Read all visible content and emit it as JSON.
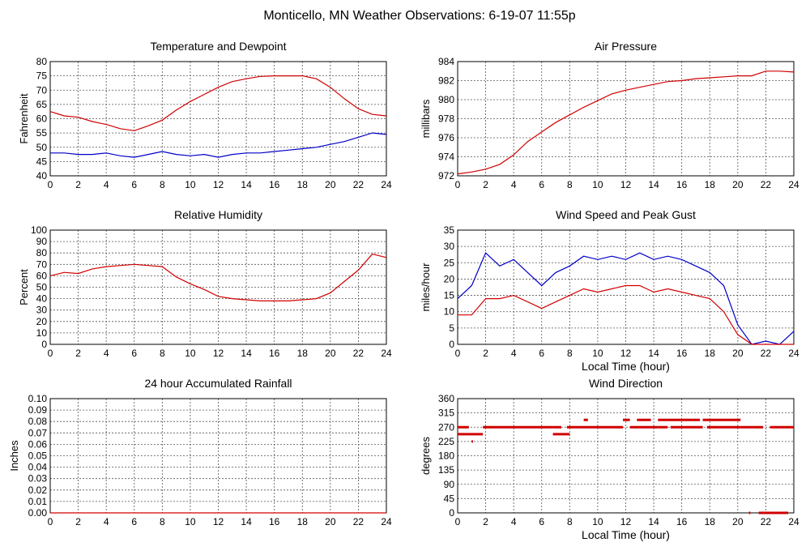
{
  "page_title": "Monticello, MN Weather Observations: 6-19-07 11:55p",
  "colors": {
    "series1": "#d00000",
    "series2": "#0000c8",
    "grid": "#555555"
  },
  "chart_data": [
    {
      "type": "line",
      "title": "Temperature and Dewpoint",
      "xlabel": "",
      "ylabel": "Fahrenheit",
      "xlim": [
        0,
        24
      ],
      "ylim": [
        40,
        80
      ],
      "xticks": [
        0,
        2,
        4,
        6,
        8,
        10,
        12,
        14,
        16,
        18,
        20,
        22,
        24
      ],
      "yticks": [
        40,
        45,
        50,
        55,
        60,
        65,
        70,
        75,
        80
      ],
      "grid": true,
      "series": [
        {
          "color": "#d00000",
          "x": [
            0,
            1,
            2,
            3,
            4,
            5,
            6,
            7,
            8,
            9,
            10,
            11,
            12,
            13,
            14,
            15,
            16,
            17,
            18,
            19,
            20,
            21,
            22,
            23,
            24
          ],
          "y": [
            62.5,
            61,
            60.5,
            59,
            58,
            56.5,
            55.8,
            57.5,
            59.5,
            63,
            66,
            68.5,
            71,
            73,
            74,
            74.8,
            75,
            75,
            75,
            74,
            71,
            67,
            63.5,
            61.5,
            61
          ]
        },
        {
          "color": "#0000c8",
          "x": [
            0,
            1,
            2,
            3,
            4,
            5,
            6,
            7,
            8,
            9,
            10,
            11,
            12,
            13,
            14,
            15,
            16,
            17,
            18,
            19,
            20,
            21,
            22,
            23,
            24
          ],
          "y": [
            48,
            48,
            47.5,
            47.5,
            48,
            47,
            46.5,
            47.5,
            48.5,
            47.5,
            47,
            47.5,
            46.5,
            47.5,
            48,
            48,
            48.5,
            49,
            49.5,
            50,
            51,
            52,
            53.5,
            55,
            54.5
          ]
        }
      ]
    },
    {
      "type": "line",
      "title": "Air Pressure",
      "xlabel": "",
      "ylabel": "millibars",
      "xlim": [
        0,
        24
      ],
      "ylim": [
        972,
        984
      ],
      "xticks": [
        0,
        2,
        4,
        6,
        8,
        10,
        12,
        14,
        16,
        18,
        20,
        22,
        24
      ],
      "yticks": [
        972,
        974,
        976,
        978,
        980,
        982,
        984
      ],
      "grid": true,
      "series": [
        {
          "color": "#d00000",
          "x": [
            0,
            1,
            2,
            3,
            4,
            5,
            6,
            7,
            8,
            9,
            10,
            11,
            12,
            13,
            14,
            15,
            16,
            17,
            18,
            19,
            20,
            21,
            22,
            23,
            24
          ],
          "y": [
            972.2,
            972.4,
            972.7,
            973.2,
            974.2,
            975.6,
            976.6,
            977.6,
            978.4,
            979.2,
            979.9,
            980.6,
            981,
            981.3,
            981.6,
            981.9,
            982,
            982.2,
            982.3,
            982.4,
            982.5,
            982.5,
            983,
            983,
            982.9
          ]
        }
      ]
    },
    {
      "type": "line",
      "title": "Relative Humidity",
      "xlabel": "",
      "ylabel": "Percent",
      "xlim": [
        0,
        24
      ],
      "ylim": [
        0,
        100
      ],
      "xticks": [
        0,
        2,
        4,
        6,
        8,
        10,
        12,
        14,
        16,
        18,
        20,
        22,
        24
      ],
      "yticks": [
        0,
        10,
        20,
        30,
        40,
        50,
        60,
        70,
        80,
        90,
        100
      ],
      "grid": true,
      "series": [
        {
          "color": "#d00000",
          "x": [
            0,
            1,
            2,
            3,
            4,
            5,
            6,
            7,
            8,
            9,
            10,
            11,
            12,
            13,
            14,
            15,
            16,
            17,
            18,
            19,
            20,
            21,
            22,
            23,
            24
          ],
          "y": [
            60,
            63,
            62,
            66,
            68,
            69,
            70,
            69,
            68,
            59,
            53,
            48,
            42,
            40,
            39,
            38,
            38,
            38,
            39,
            40,
            45,
            55,
            65,
            79,
            76
          ]
        }
      ]
    },
    {
      "type": "line",
      "title": "Wind Speed and Peak Gust",
      "xlabel": "Local Time (hour)",
      "ylabel": "miles/hour",
      "xlim": [
        0,
        24
      ],
      "ylim": [
        0,
        35
      ],
      "xticks": [
        0,
        2,
        4,
        6,
        8,
        10,
        12,
        14,
        16,
        18,
        20,
        22,
        24
      ],
      "yticks": [
        0,
        5,
        10,
        15,
        20,
        25,
        30,
        35
      ],
      "grid": true,
      "series": [
        {
          "color": "#0000c8",
          "x": [
            0,
            1,
            2,
            3,
            4,
            5,
            6,
            7,
            8,
            9,
            10,
            11,
            12,
            13,
            14,
            15,
            16,
            17,
            18,
            19,
            20,
            21,
            22,
            23,
            24
          ],
          "y": [
            14,
            18,
            28,
            24,
            26,
            22,
            18,
            22,
            24,
            27,
            26,
            27,
            26,
            28,
            26,
            27,
            26,
            24,
            22,
            18,
            6,
            0,
            1,
            0,
            4
          ]
        },
        {
          "color": "#d00000",
          "x": [
            0,
            1,
            2,
            3,
            4,
            5,
            6,
            7,
            8,
            9,
            10,
            11,
            12,
            13,
            14,
            15,
            16,
            17,
            18,
            19,
            20,
            21,
            22,
            23,
            24
          ],
          "y": [
            9,
            9,
            14,
            14,
            15,
            13,
            11,
            13,
            15,
            17,
            16,
            17,
            18,
            18,
            16,
            17,
            16,
            15,
            14,
            10,
            3,
            0,
            0,
            0,
            0
          ]
        }
      ]
    },
    {
      "type": "line",
      "title": "24 hour Accumulated Rainfall",
      "xlabel": "",
      "ylabel": "Inches",
      "xlim": [
        0,
        24
      ],
      "ylim": [
        0,
        0.1
      ],
      "xticks": [
        0,
        2,
        4,
        6,
        8,
        10,
        12,
        14,
        16,
        18,
        20,
        22,
        24
      ],
      "yticks": [
        "0.00",
        "0.01",
        "0.02",
        "0.03",
        "0.04",
        "0.05",
        "0.06",
        "0.07",
        "0.08",
        "0.09",
        "0.10"
      ],
      "grid": true,
      "series": [
        {
          "color": "#d00000",
          "x": [
            0,
            24
          ],
          "y": [
            0,
            0
          ]
        }
      ]
    },
    {
      "type": "scatter",
      "title": "Wind Direction",
      "xlabel": "Local Time (hour)",
      "ylabel": "degrees",
      "xlim": [
        0,
        24
      ],
      "ylim": [
        0,
        360
      ],
      "xticks": [
        0,
        2,
        4,
        6,
        8,
        10,
        12,
        14,
        16,
        18,
        20,
        22,
        24
      ],
      "yticks": [
        0,
        45,
        90,
        135,
        180,
        225,
        270,
        315,
        360
      ],
      "grid": true,
      "segments": [
        [
          0,
          0.8,
          270
        ],
        [
          0,
          1.8,
          248
        ],
        [
          1,
          1.1,
          225
        ],
        [
          1.8,
          6.8,
          270
        ],
        [
          6.8,
          8,
          248
        ],
        [
          6.8,
          7.4,
          270
        ],
        [
          7.8,
          11.8,
          270
        ],
        [
          9,
          9.3,
          293
        ],
        [
          11.8,
          12.3,
          293
        ],
        [
          12.3,
          14.3,
          270
        ],
        [
          12.8,
          13.8,
          293
        ],
        [
          14.3,
          15,
          270
        ],
        [
          14.3,
          17.3,
          293
        ],
        [
          15.2,
          17.5,
          270
        ],
        [
          17.5,
          20.2,
          293
        ],
        [
          17.8,
          20.2,
          270
        ],
        [
          20.2,
          21.8,
          270
        ],
        [
          20.8,
          20.9,
          0
        ],
        [
          21.5,
          23.6,
          0
        ],
        [
          22.3,
          24,
          270
        ]
      ]
    }
  ]
}
